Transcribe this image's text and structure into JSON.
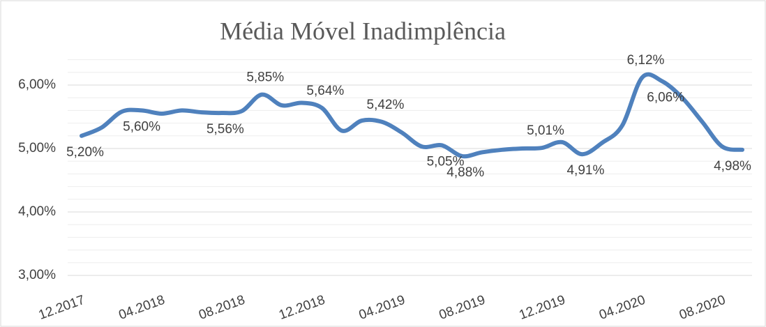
{
  "chart_data": {
    "type": "line",
    "title": "Média Móvel Inadimplência",
    "categories": [
      "12.2017",
      null,
      null,
      null,
      "04.2018",
      null,
      null,
      null,
      "08.2018",
      null,
      null,
      null,
      "12.2018",
      null,
      null,
      null,
      "04.2019",
      null,
      null,
      null,
      "08.2019",
      null,
      null,
      null,
      "12.2019",
      null,
      null,
      null,
      "04.2020",
      null,
      null,
      null,
      "08.2020",
      null
    ],
    "series": [
      {
        "name": "Média Móvel Inadimplência",
        "color": "#4f81bd",
        "values": [
          5.2,
          5.33,
          5.58,
          5.6,
          5.55,
          5.6,
          5.57,
          5.56,
          5.59,
          5.85,
          5.68,
          5.72,
          5.64,
          5.28,
          5.44,
          5.42,
          5.25,
          5.03,
          5.05,
          4.88,
          4.94,
          4.98,
          5.0,
          5.01,
          5.1,
          4.91,
          5.09,
          5.36,
          6.12,
          6.06,
          5.8,
          5.42,
          5.03,
          4.98
        ],
        "value_labels": [
          "5,20%",
          null,
          null,
          "5,60%",
          null,
          null,
          null,
          "5,56%",
          null,
          "5,85%",
          null,
          null,
          "5,64%",
          null,
          null,
          "5,42%",
          null,
          null,
          "5,05%",
          "4,88%",
          null,
          null,
          null,
          "5,01%",
          null,
          "4,91%",
          null,
          null,
          "6,12%",
          "6,06%",
          null,
          null,
          null,
          "4,98%"
        ]
      }
    ],
    "ylim": [
      3,
      6.4
    ],
    "yticks": [
      {
        "value": 3,
        "label": "3,00%"
      },
      {
        "value": 4,
        "label": "4,00%"
      },
      {
        "value": 5,
        "label": "5,00%"
      },
      {
        "value": 6,
        "label": "6,00%"
      }
    ],
    "minor_yticks": [
      3.2,
      3.4,
      3.6,
      3.8,
      4.2,
      4.4,
      4.6,
      4.8,
      5.2,
      5.4,
      5.6,
      5.8,
      6.2,
      6.4
    ],
    "grid": true
  }
}
